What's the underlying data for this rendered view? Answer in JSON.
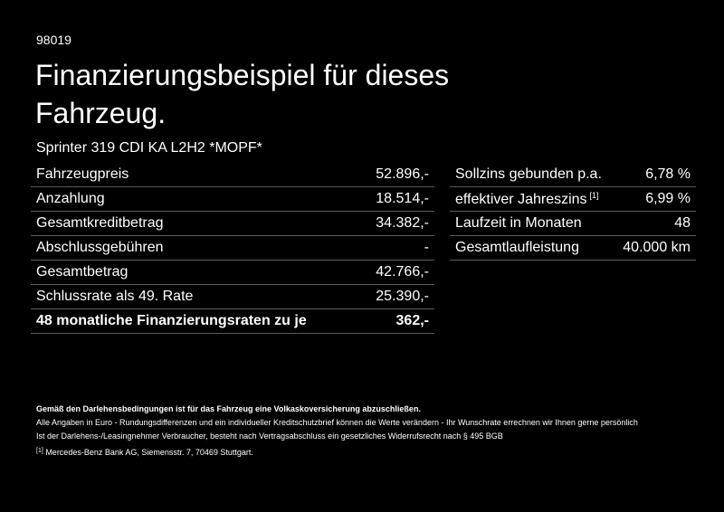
{
  "header": {
    "code": "98019",
    "title_lines": [
      "Finanzierungsbeispiel für dieses",
      "Fahrzeug."
    ],
    "vehicle": "Sprinter 319 CDI KA L2H2 *MOPF*"
  },
  "left_table": {
    "rows": [
      [
        "Fahrzeugpreis",
        "52.896,-"
      ],
      [
        "Anzahlung",
        "18.514,-"
      ],
      [
        "Gesamtkreditbetrag",
        "34.382,-"
      ],
      [
        "Abschlussgebühren",
        "-"
      ],
      [
        "Gesamtbetrag",
        "42.766,-"
      ],
      [
        "Schlussrate als 49. Rate",
        "25.390,-"
      ],
      [
        "48 monatliche Finanzierungsraten zu je",
        "362,-"
      ]
    ]
  },
  "right_table": {
    "rows": [
      [
        "Sollzins gebunden p.a.",
        "6,78 %"
      ],
      [
        "effektiver Jahreszins",
        "6,99 %"
      ],
      [
        "Laufzeit in Monaten",
        "48"
      ],
      [
        "Gesamtlaufleistung",
        "40.000 km"
      ]
    ],
    "footnote_marker": "[1]"
  },
  "footer": {
    "bold_note": "Gemäß den Darlehensbedingungen ist für das Fahrzeug eine Volkaskoversicherung abzuschließen.",
    "notes": [
      "Alle Angaben in Euro - Rundungsdifferenzen und ein individueller Kreditschutzbrief können die Werte verändern - Ihr Wunschrate errechnen wir Ihnen gerne persönlich",
      "Ist der Darlehens-/Leasingnehmer Verbraucher, besteht nach Vertragsabschluss ein gesetzliches Widerrufsrecht nach § 495 BGB"
    ],
    "footnote": {
      "marker": "[1]",
      "text": "Mercedes-Benz Bank AG, Siemensstr. 7, 70469 Stuttgart."
    }
  }
}
